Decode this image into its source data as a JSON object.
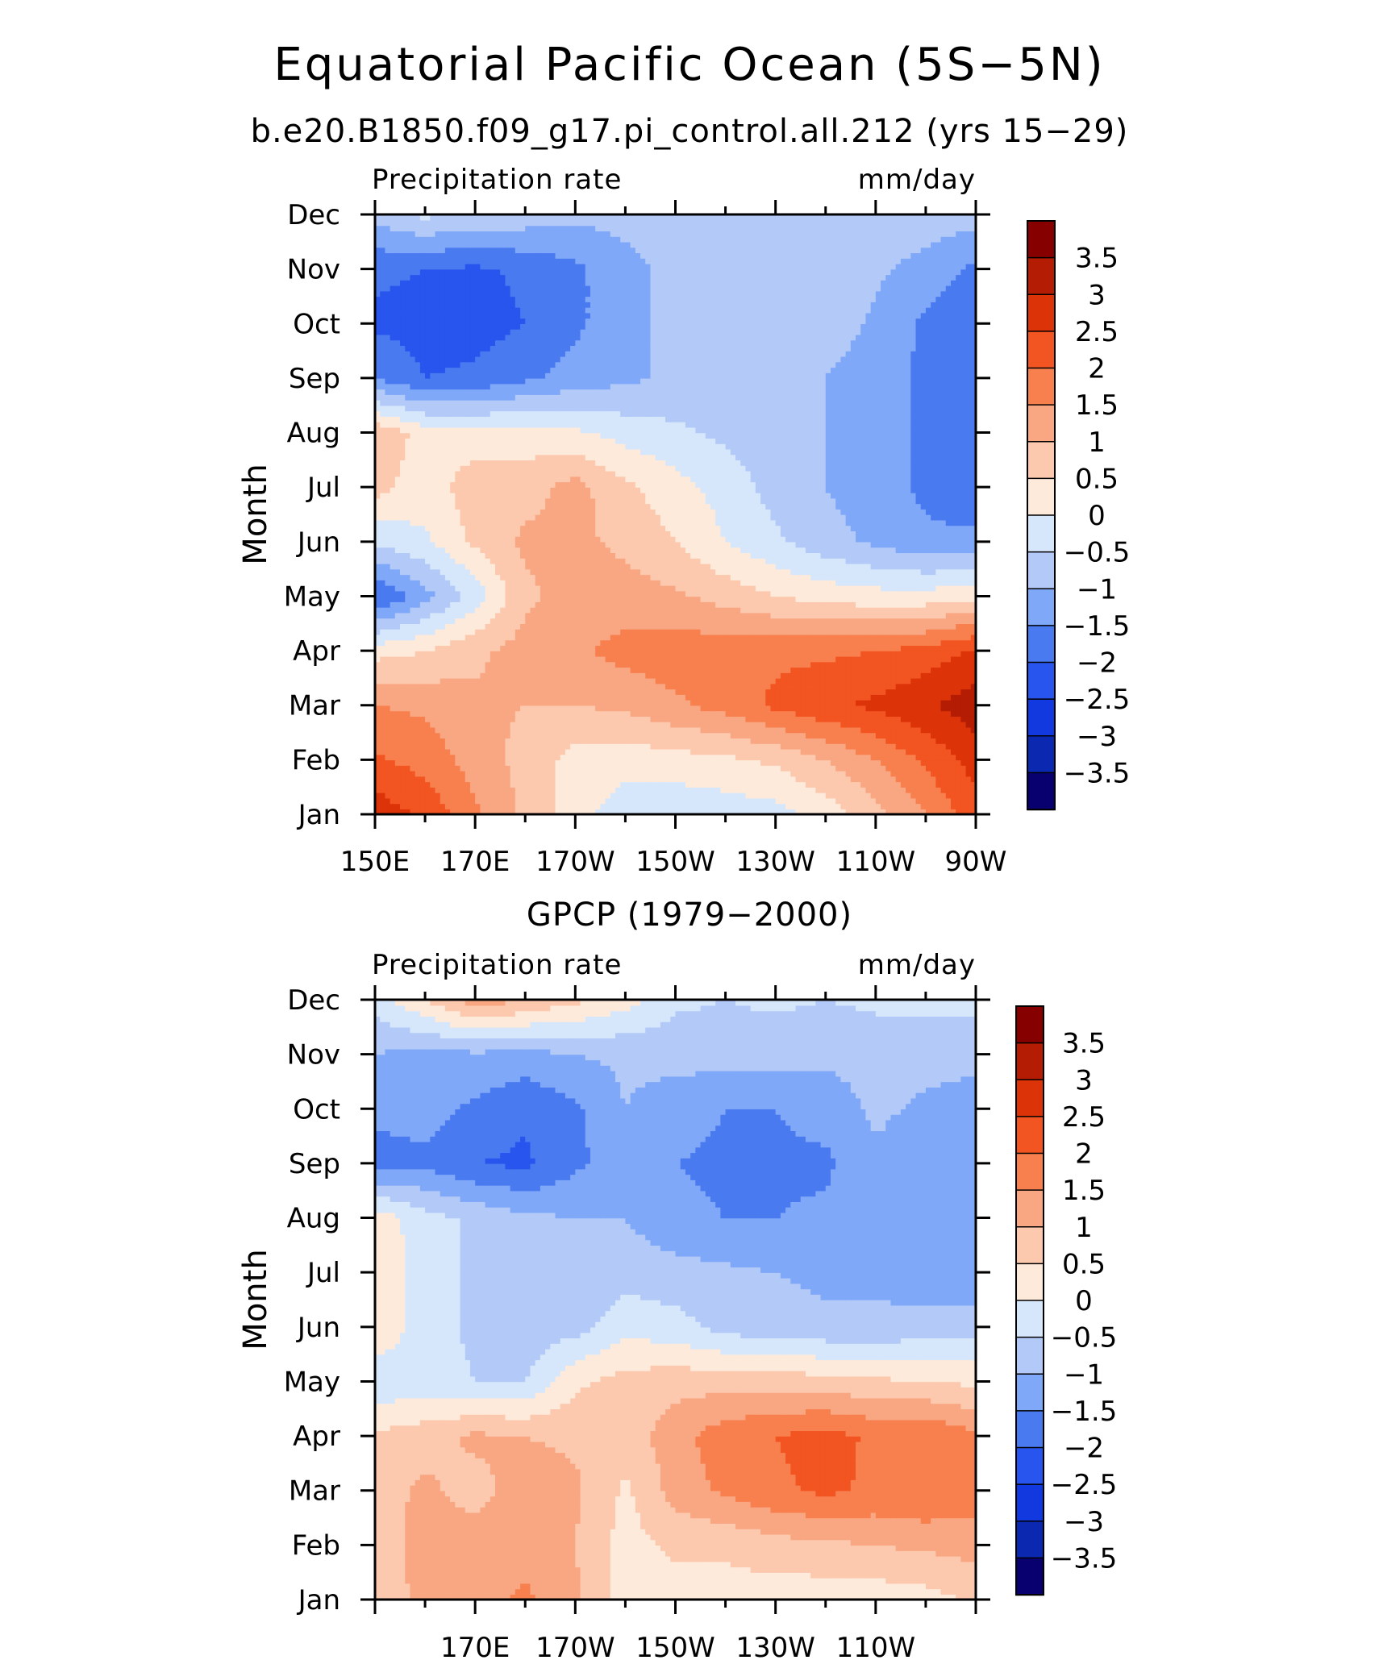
{
  "figure": {
    "title": "Equatorial Pacific Ocean (5S−5N)",
    "panel1_title": "b.e20.B1850.f09_g17.pi_control.all.212 (yrs 15−29)",
    "panel2_title": "GPCP (1979−2000)"
  },
  "colors": {
    "levels": [
      "#08006e",
      "#0a28b0",
      "#1238e0",
      "#2855ee",
      "#4a7af0",
      "#80a8f8",
      "#b3caf8",
      "#d6e7fb",
      "#feeadb",
      "#fcc9ae",
      "#f9a783",
      "#f8804f",
      "#f25521",
      "#dc3408",
      "#b41c03",
      "#870000"
    ],
    "frame": "#000000"
  },
  "chart_data": [
    {
      "type": "heatmap",
      "title": "b.e20.B1850.f09_g17.pi_control.all.212 (yrs 15−29)",
      "left_label": "Precipitation rate",
      "right_label": "mm/day",
      "ylabel": "Month",
      "xlabel": "",
      "x_ticklabels": [
        "150E",
        "170E",
        "170W",
        "150W",
        "130W",
        "110W",
        "90W"
      ],
      "x_tick_lon": [
        150,
        170,
        190,
        210,
        230,
        250,
        270
      ],
      "xlim": [
        150,
        270
      ],
      "y_ticklabels": [
        "Jan",
        "Feb",
        "Mar",
        "Apr",
        "May",
        "Jun",
        "Jul",
        "Aug",
        "Sep",
        "Oct",
        "Nov",
        "Dec"
      ],
      "ylim": [
        1,
        12
      ],
      "colorbar": {
        "labels": [
          "3.5",
          "3",
          "2.5",
          "2",
          "1.5",
          "1",
          "0.5",
          "0",
          "−0.5",
          "−1",
          "−1.5",
          "−2",
          "−2.5",
          "−3",
          "−3.5"
        ],
        "levels": [
          -3.5,
          -3,
          -2.5,
          -2,
          -1.5,
          -1,
          -0.5,
          0,
          0.5,
          1,
          1.5,
          2,
          2.5,
          3,
          3.5
        ]
      },
      "lon": [
        150,
        160,
        170,
        180,
        190,
        200,
        210,
        220,
        230,
        240,
        250,
        260,
        270
      ],
      "months": [
        1,
        2,
        3,
        4,
        5,
        6,
        7,
        8,
        9,
        10,
        11,
        12
      ],
      "values": [
        [
          2.8,
          2.4,
          1.6,
          0.9,
          0.2,
          -0.3,
          -0.4,
          -0.3,
          -0.2,
          0.2,
          0.8,
          1.5,
          2.3
        ],
        [
          2.1,
          1.8,
          1.3,
          0.8,
          0.3,
          0.2,
          0.3,
          0.4,
          0.6,
          1.0,
          1.5,
          2.1,
          2.7
        ],
        [
          1.5,
          1.4,
          1.1,
          1.0,
          1.0,
          1.1,
          1.4,
          1.7,
          2.1,
          2.4,
          2.6,
          2.9,
          3.3
        ],
        [
          0.3,
          0.5,
          0.9,
          1.2,
          1.4,
          1.7,
          1.8,
          1.8,
          1.9,
          1.9,
          2.0,
          2.2,
          2.6
        ],
        [
          -2.1,
          -1.2,
          -0.3,
          0.9,
          1.2,
          1.2,
          1.1,
          0.8,
          0.5,
          0.3,
          0.2,
          0.2,
          0.4
        ],
        [
          -0.4,
          -0.1,
          0.6,
          1.1,
          1.1,
          0.9,
          0.5,
          0.0,
          -0.4,
          -0.8,
          -1.1,
          -1.4,
          -1.4
        ],
        [
          0.7,
          0.2,
          0.8,
          0.8,
          1.2,
          0.6,
          0.2,
          -0.2,
          -0.7,
          -1.0,
          -1.3,
          -1.6,
          -1.8
        ],
        [
          0.9,
          0.3,
          0.2,
          0.2,
          0.1,
          -0.2,
          -0.4,
          -0.6,
          -0.8,
          -1.0,
          -1.3,
          -1.6,
          -1.8
        ],
        [
          -1.5,
          -2.0,
          -1.9,
          -1.6,
          -1.3,
          -1.1,
          -0.9,
          -0.8,
          -0.8,
          -1.0,
          -1.3,
          -1.6,
          -1.8
        ],
        [
          -2.1,
          -2.2,
          -2.2,
          -2.0,
          -1.6,
          -1.2,
          -0.8,
          -0.7,
          -0.6,
          -0.7,
          -1.1,
          -1.6,
          -1.9
        ],
        [
          -1.9,
          -2.0,
          -2.1,
          -1.9,
          -1.6,
          -1.2,
          -0.8,
          -0.7,
          -0.7,
          -0.7,
          -0.9,
          -1.2,
          -1.6
        ],
        [
          -0.8,
          -0.4,
          -0.6,
          -0.7,
          -0.9,
          -0.8,
          -0.7,
          -0.7,
          -0.7,
          -0.7,
          -0.7,
          -0.7,
          -0.8
        ]
      ]
    },
    {
      "type": "heatmap",
      "title": "GPCP (1979−2000)",
      "left_label": "Precipitation rate",
      "right_label": "mm/day",
      "ylabel": "Month",
      "xlabel": "",
      "x_ticklabels": [
        "170E",
        "170W",
        "150W",
        "130W",
        "110W"
      ],
      "x_tick_lon": [
        170,
        190,
        210,
        230,
        250
      ],
      "xlim": [
        150,
        270
      ],
      "y_ticklabels": [
        "Jan",
        "Feb",
        "Mar",
        "Apr",
        "May",
        "Jun",
        "Jul",
        "Aug",
        "Sep",
        "Oct",
        "Nov",
        "Dec"
      ],
      "ylim": [
        1,
        12
      ],
      "colorbar": {
        "labels": [
          "3.5",
          "3",
          "2.5",
          "2",
          "1.5",
          "1",
          "0.5",
          "0",
          "−0.5",
          "−1",
          "−1.5",
          "−2",
          "−2.5",
          "−3",
          "−3.5"
        ],
        "levels": [
          -3.5,
          -3,
          -2.5,
          -2,
          -1.5,
          -1,
          -0.5,
          0,
          0.5,
          1,
          1.5,
          2,
          2.5,
          3,
          3.5
        ]
      },
      "lon": [
        150,
        160,
        170,
        180,
        190,
        200,
        210,
        220,
        230,
        240,
        250,
        260,
        270
      ],
      "months": [
        1,
        2,
        3,
        4,
        5,
        6,
        7,
        8,
        9,
        10,
        11,
        12
      ],
      "values": [
        [
          0.6,
          1.2,
          1.3,
          1.6,
          1.1,
          0.3,
          0.3,
          0.3,
          0.2,
          0.2,
          0.2,
          0.3,
          0.6
        ],
        [
          0.7,
          1.2,
          1.3,
          1.3,
          1.0,
          0.3,
          0.6,
          0.6,
          0.8,
          0.9,
          1.0,
          1.1,
          1.2
        ],
        [
          0.8,
          1.1,
          0.8,
          1.3,
          1.1,
          0.4,
          1.2,
          1.6,
          1.9,
          2.1,
          1.9,
          2.0,
          1.8
        ],
        [
          0.6,
          0.8,
          1.1,
          1.0,
          0.9,
          0.7,
          1.3,
          1.8,
          2.0,
          2.2,
          1.9,
          2.0,
          1.6
        ],
        [
          -0.4,
          -0.3,
          -0.5,
          -0.5,
          0.4,
          0.7,
          0.8,
          0.8,
          0.8,
          0.7,
          0.6,
          0.5,
          0.4
        ],
        [
          0.5,
          -0.3,
          -0.6,
          -0.8,
          -0.7,
          -0.2,
          -0.3,
          -0.7,
          -0.8,
          -0.9,
          -0.9,
          -0.8,
          -0.7
        ],
        [
          0.5,
          -0.3,
          -0.6,
          -0.8,
          -0.9,
          -0.7,
          -0.8,
          -0.9,
          -1.0,
          -1.1,
          -1.1,
          -1.3,
          -1.4
        ],
        [
          0.3,
          -0.3,
          -0.6,
          -0.9,
          -1.0,
          -1.0,
          -1.4,
          -1.5,
          -1.5,
          -1.4,
          -1.1,
          -1.3,
          -1.5
        ],
        [
          -1.7,
          -1.6,
          -2.0,
          -2.1,
          -1.6,
          -1.3,
          -1.5,
          -1.6,
          -1.6,
          -1.6,
          -1.1,
          -1.3,
          -1.5
        ],
        [
          -1.4,
          -1.3,
          -1.6,
          -1.9,
          -1.6,
          -1.0,
          -1.3,
          -1.5,
          -1.5,
          -1.3,
          -0.9,
          -1.1,
          -1.3
        ],
        [
          -1.0,
          -1.2,
          -1.1,
          -1.2,
          -1.0,
          -0.9,
          -0.8,
          -0.8,
          -0.8,
          -0.9,
          -0.8,
          -0.8,
          -0.8
        ],
        [
          -0.3,
          0.5,
          1.3,
          1.0,
          0.6,
          0.2,
          -0.4,
          -0.5,
          -0.4,
          -0.5,
          -0.4,
          -0.4,
          -0.4
        ]
      ]
    }
  ]
}
